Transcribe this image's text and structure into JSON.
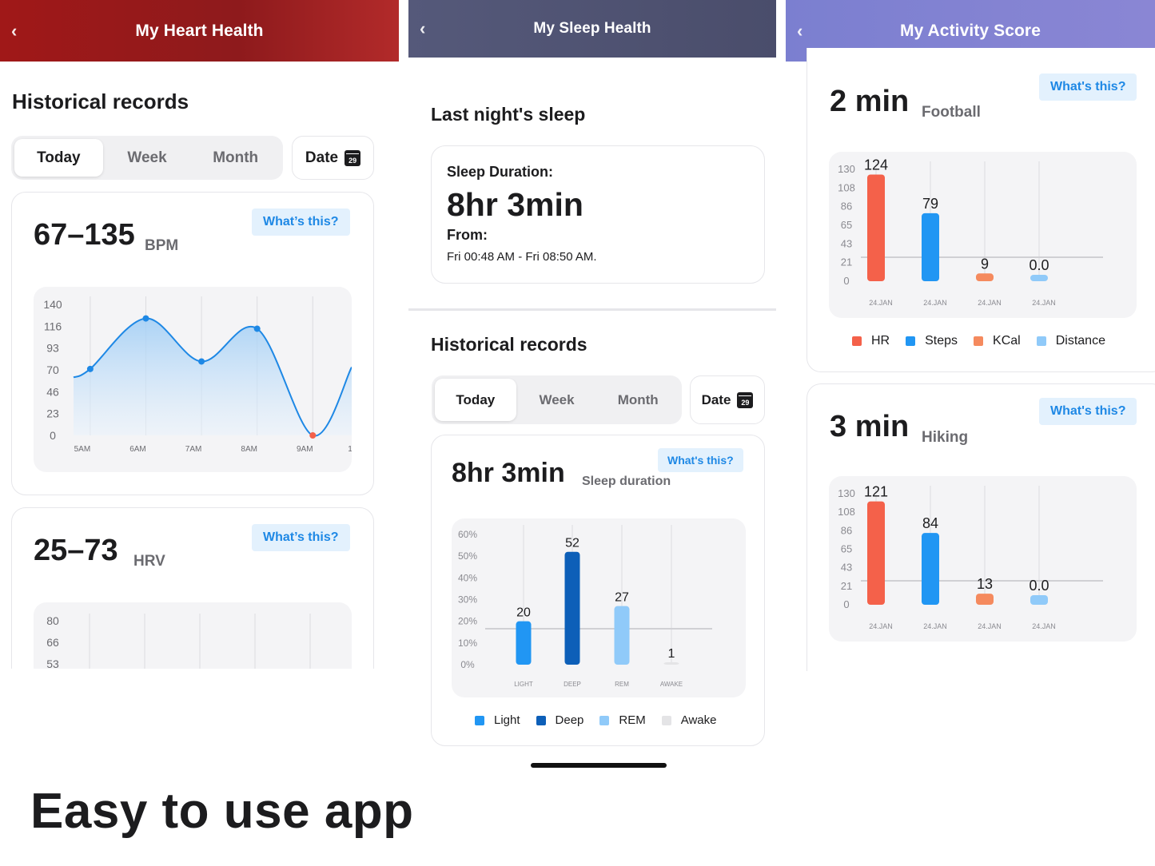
{
  "tagline": "Easy to use app",
  "colors": {
    "heart_header": "#9a1a1c",
    "sleep_header": "#4f5373",
    "activity_header": "#8084d2",
    "accent_blue": "#1e88e5",
    "hr_red": "#f4614a",
    "steps_blue": "#2196f3",
    "kcal_orange": "#f58a5e",
    "distance_lightblue": "#90caf9",
    "deep_blue": "#0d5fb8",
    "rem_lightblue": "#90caf9",
    "awake_gray": "#e4e4e6"
  },
  "heart": {
    "back_icon": "chevron-left-icon",
    "title": "My Heart Health",
    "section_title": "Historical records",
    "tabs": [
      {
        "label": "Today",
        "active": true
      },
      {
        "label": "Week",
        "active": false
      },
      {
        "label": "Month",
        "active": false
      }
    ],
    "date_label": "Date",
    "date_day": "29",
    "bpm_card": {
      "value": "67–135",
      "unit": "BPM",
      "whats_this": "What’s this?"
    },
    "hrv_card": {
      "value": "25–73",
      "unit": "HRV",
      "whats_this": "What’s this?",
      "y_ticks": [
        "80",
        "66",
        "53"
      ]
    }
  },
  "sleep": {
    "title": "My Sleep Health",
    "last_night_title": "Last night's sleep",
    "summary": {
      "duration_label": "Sleep Duration:",
      "duration_value": "8hr 3min",
      "from_label": "From:",
      "from_value": "Fri 00:48 AM - Fri 08:50 AM."
    },
    "section_title": "Historical records",
    "tabs": [
      {
        "label": "Today",
        "active": true
      },
      {
        "label": "Week",
        "active": false
      },
      {
        "label": "Month",
        "active": false
      }
    ],
    "date_label": "Date",
    "date_day": "29",
    "chart_card": {
      "value": "8hr 3min",
      "unit": "Sleep duration",
      "whats_this": "What's this?"
    }
  },
  "activity": {
    "title": "My Activity Score",
    "cards": [
      {
        "value": "2 min",
        "activity": "Football",
        "whats_this": "What's this?"
      },
      {
        "value": "3 min",
        "activity": "Hiking",
        "whats_this": "What's this?"
      }
    ],
    "legend": [
      {
        "name": "HR",
        "color": "#f4614a"
      },
      {
        "name": "Steps",
        "color": "#2196f3"
      },
      {
        "name": "KCal",
        "color": "#f58a5e"
      },
      {
        "name": "Distance",
        "color": "#90caf9"
      }
    ]
  },
  "chart_data": [
    {
      "id": "bpm",
      "type": "area",
      "title": "",
      "x_ticks": [
        "5AM",
        "6AM",
        "7AM",
        "8AM",
        "9AM",
        "1"
      ],
      "y_ticks": [
        "140",
        "116",
        "93",
        "70",
        "46",
        "23",
        "0"
      ],
      "ylim": [
        0,
        140
      ],
      "points": [
        {
          "x": 0.0,
          "y": 62
        },
        {
          "x": 0.3,
          "y": 71
        },
        {
          "x": 1.3,
          "y": 125
        },
        {
          "x": 2.3,
          "y": 79
        },
        {
          "x": 3.3,
          "y": 114
        },
        {
          "x": 4.3,
          "y": 0
        },
        {
          "x": 5.0,
          "y": 73
        }
      ],
      "markers": [
        {
          "x": 0.3,
          "y": 71
        },
        {
          "x": 1.3,
          "y": 125
        },
        {
          "x": 2.3,
          "y": 79
        },
        {
          "x": 3.3,
          "y": 114
        },
        {
          "x": 4.3,
          "y": 0,
          "color": "#f4614a"
        }
      ],
      "grid": true
    },
    {
      "id": "sleep",
      "type": "bar",
      "categories": [
        "LIGHT",
        "DEEP",
        "REM",
        "AWAKE"
      ],
      "values": [
        20,
        52,
        27,
        1
      ],
      "value_labels": [
        "20",
        "52",
        "27",
        "1"
      ],
      "y_ticks": [
        "60%",
        "50%",
        "40%",
        "30%",
        "20%",
        "10%",
        "0%"
      ],
      "ylim": [
        0,
        60
      ],
      "legend": [
        "Light",
        "Deep",
        "REM",
        "Awake"
      ],
      "colors": [
        "#2196f3",
        "#0d5fb8",
        "#90caf9",
        "#e4e4e6"
      ],
      "grid": true
    },
    {
      "id": "football",
      "type": "bar",
      "categories": [
        "24.JAN",
        "24.JAN",
        "24.JAN",
        "24.JAN"
      ],
      "values": [
        124,
        79,
        9,
        0
      ],
      "value_labels": [
        "124",
        "79",
        "9",
        "0.0"
      ],
      "series_names": [
        "HR",
        "Steps",
        "KCal",
        "Distance"
      ],
      "y_ticks": [
        "130",
        "108",
        "86",
        "65",
        "43",
        "21",
        "0"
      ],
      "ylim": [
        0,
        130
      ],
      "colors": [
        "#f4614a",
        "#2196f3",
        "#f58a5e",
        "#90caf9"
      ],
      "grid": true
    },
    {
      "id": "hiking",
      "type": "bar",
      "categories": [
        "24.JAN",
        "24.JAN",
        "24.JAN",
        "24.JAN"
      ],
      "values": [
        121,
        84,
        13,
        0
      ],
      "value_labels": [
        "121",
        "84",
        "13",
        "0.0"
      ],
      "series_names": [
        "HR",
        "Steps",
        "KCal",
        "Distance"
      ],
      "y_ticks": [
        "130",
        "108",
        "86",
        "65",
        "43",
        "21",
        "0"
      ],
      "ylim": [
        0,
        130
      ],
      "colors": [
        "#f4614a",
        "#2196f3",
        "#f58a5e",
        "#90caf9"
      ],
      "grid": true
    }
  ]
}
